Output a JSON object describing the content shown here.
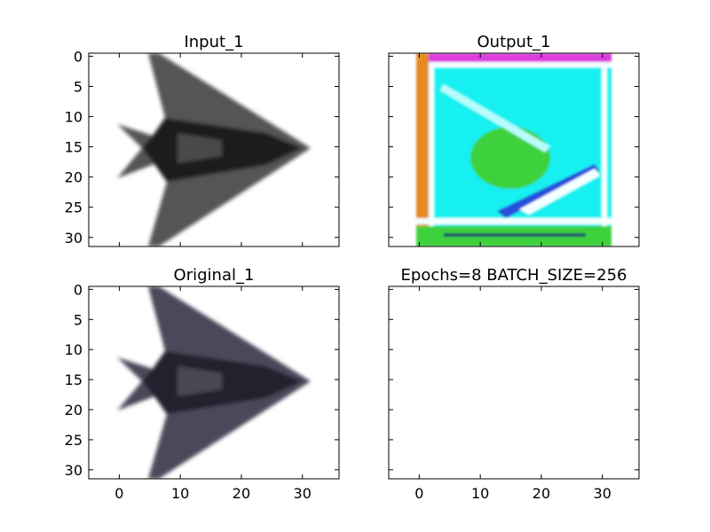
{
  "chart_data": [
    {
      "type": "image",
      "title": "Input_1",
      "image_extent": [
        0,
        31
      ],
      "xlim": [
        -5,
        36
      ],
      "ylim": [
        31.5,
        -0.5
      ],
      "xticks": [
        0,
        10,
        20,
        30
      ],
      "yticks": [
        0,
        5,
        10,
        15,
        20,
        25,
        30
      ],
      "show_xticklabels": false,
      "show_yticklabels": true,
      "content": "grayscale stealth-aircraft (flying-wing) silhouette pointing right",
      "palette": {
        "dark": "#1c1c1c",
        "mid": "#555555",
        "light": "#9a9a9a"
      }
    },
    {
      "type": "image",
      "title": "Output_1",
      "image_extent": [
        0,
        31
      ],
      "xlim": [
        -5,
        36
      ],
      "ylim": [
        31.5,
        -0.5
      ],
      "xticks": [
        0,
        10,
        20,
        30
      ],
      "yticks": [
        0,
        5,
        10,
        15,
        20,
        25,
        30
      ],
      "show_xticklabels": false,
      "show_yticklabels": false,
      "content": "noisy reconstruction: cyan field with green center blob, white/blue diagonals, magenta top band, orange/red left edge, green bottom band",
      "palette": {
        "cyan": "#19f0f0",
        "green": "#3cd23c",
        "magenta": "#dc3cdc",
        "orange": "#e68a28",
        "blue": "#2850dc"
      }
    },
    {
      "type": "image",
      "title": "Original_1",
      "image_extent": [
        0,
        31
      ],
      "xlim": [
        -5,
        36
      ],
      "ylim": [
        31.5,
        -0.5
      ],
      "xticks": [
        0,
        10,
        20,
        30
      ],
      "yticks": [
        0,
        5,
        10,
        15,
        20,
        25,
        30
      ],
      "show_xticklabels": true,
      "show_yticklabels": true,
      "content": "slate-gray stealth-aircraft (flying-wing) silhouette pointing right",
      "palette": {
        "dark": "#24242e",
        "mid": "#4a4a5a",
        "light": "#8c8c9c"
      }
    },
    {
      "type": "image",
      "title": "Epochs=8 BATCH_SIZE=256",
      "image_extent": [
        0,
        31
      ],
      "xlim": [
        -5,
        36
      ],
      "ylim": [
        31.5,
        -0.5
      ],
      "xticks": [
        0,
        10,
        20,
        30
      ],
      "yticks": [
        0,
        5,
        10,
        15,
        20,
        25,
        30
      ],
      "show_xticklabels": true,
      "show_yticklabels": false,
      "content": "empty"
    }
  ]
}
